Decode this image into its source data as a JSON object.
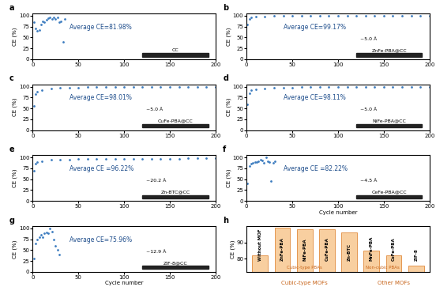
{
  "chart_data": [
    {
      "type": "scatter",
      "title": "a",
      "x_label": "",
      "y_label": "CE (%)",
      "annotations": [
        "Average CE=81.98%",
        "CC"
      ],
      "x": [
        1,
        3,
        5,
        7,
        9,
        11,
        13,
        15,
        17,
        19,
        21,
        23,
        25,
        27,
        29,
        31,
        33,
        35
      ],
      "values": [
        85,
        70,
        65,
        68,
        80,
        88,
        85,
        90,
        95,
        97,
        93,
        96,
        92,
        97,
        85,
        88,
        40,
        92
      ],
      "color": "#3b7bbf",
      "marker": "o",
      "xlim": [
        0,
        200
      ],
      "xticks": [
        0,
        50,
        100,
        150,
        200
      ],
      "ylim": [
        0,
        105
      ],
      "yticks": [
        0,
        25,
        50,
        75,
        100
      ]
    },
    {
      "type": "scatter",
      "title": "b",
      "x_label": "",
      "y_label": "CE (%)",
      "annotations": [
        "Average CE=99.17%",
        "ZnFe-PBA@CC",
        "~5.0 Å"
      ],
      "x": [
        1,
        3,
        5,
        10,
        20,
        30,
        40,
        50,
        60,
        70,
        80,
        90,
        100,
        110,
        120,
        130,
        140,
        150,
        160,
        170,
        180,
        190,
        200
      ],
      "values": [
        80,
        93,
        96,
        97.5,
        98.5,
        99,
        99,
        99.2,
        99.3,
        99.3,
        99.4,
        99.4,
        99.5,
        99.5,
        99.4,
        99.5,
        99.5,
        99.6,
        99.5,
        99.6,
        99.6,
        99.5,
        99.6
      ],
      "color": "#3b7bbf",
      "marker": "o",
      "xlim": [
        0,
        200
      ],
      "xticks": [
        0,
        50,
        100,
        150,
        200
      ],
      "ylim": [
        0,
        105
      ],
      "yticks": [
        0,
        25,
        50,
        75,
        100
      ]
    },
    {
      "type": "scatter",
      "title": "c",
      "x_label": "",
      "y_label": "CE (%)",
      "annotations": [
        "Average CE=98.01%",
        "CuFe-PBA@CC",
        "~5.0 Å"
      ],
      "x": [
        1,
        3,
        5,
        10,
        20,
        30,
        40,
        50,
        60,
        70,
        80,
        90,
        100,
        110,
        120,
        130,
        140,
        150,
        160,
        170,
        180,
        190,
        200
      ],
      "values": [
        55,
        82,
        88,
        92,
        95,
        96.5,
        97.5,
        98,
        98.3,
        98.5,
        98.7,
        98.8,
        98.9,
        99,
        99,
        99.1,
        99.1,
        99.2,
        99.2,
        99.2,
        99.3,
        99.3,
        99.3
      ],
      "color": "#3b7bbf",
      "marker": "o",
      "xlim": [
        0,
        200
      ],
      "xticks": [
        0,
        50,
        100,
        150,
        200
      ],
      "ylim": [
        0,
        105
      ],
      "yticks": [
        0,
        25,
        50,
        75,
        100
      ]
    },
    {
      "type": "scatter",
      "title": "d",
      "x_label": "",
      "y_label": "CE (%)",
      "annotations": [
        "Average CE=98.11%",
        "NiFe-PBA@CC",
        "~5.0 Å"
      ],
      "x": [
        1,
        3,
        5,
        10,
        20,
        30,
        40,
        50,
        60,
        70,
        80,
        90,
        100,
        110,
        120,
        130,
        140,
        150,
        160,
        170,
        180,
        190,
        200
      ],
      "values": [
        60,
        85,
        91,
        94,
        96,
        97,
        97.5,
        98,
        98.3,
        98.5,
        98.6,
        98.7,
        98.8,
        98.9,
        98.9,
        99,
        99,
        99.1,
        99.1,
        99.1,
        99.2,
        99.2,
        99.2
      ],
      "color": "#3b7bbf",
      "marker": "o",
      "xlim": [
        0,
        200
      ],
      "xticks": [
        0,
        50,
        100,
        150,
        200
      ],
      "ylim": [
        0,
        105
      ],
      "yticks": [
        0,
        25,
        50,
        75,
        100
      ]
    },
    {
      "type": "scatter",
      "title": "e",
      "x_label": "",
      "y_label": "CE (%)",
      "annotations": [
        "Average CE =96.22%",
        "Zn-BTC@CC",
        "~20.2 Å"
      ],
      "x": [
        1,
        3,
        5,
        10,
        20,
        30,
        40,
        50,
        60,
        70,
        80,
        90,
        100,
        110,
        120,
        130,
        140,
        150,
        160,
        170,
        180,
        190,
        200
      ],
      "values": [
        70,
        86,
        90,
        92,
        94,
        95,
        95.5,
        96,
        96.3,
        96.5,
        96.7,
        96.8,
        97,
        97,
        97.2,
        97.3,
        97.4,
        97.5,
        97.5,
        97.6,
        97.7,
        97.7,
        97.8
      ],
      "color": "#3b7bbf",
      "marker": "o",
      "xlim": [
        0,
        200
      ],
      "xticks": [
        0,
        50,
        100,
        150,
        200
      ],
      "ylim": [
        0,
        105
      ],
      "yticks": [
        0,
        25,
        50,
        75,
        100
      ]
    },
    {
      "type": "scatter",
      "title": "f",
      "x_label": "Cycle number",
      "y_label": "CE (%)",
      "annotations": [
        "Average CE =82.22%",
        "CeFe-PBA@CC",
        "~4.5 Å"
      ],
      "x": [
        1,
        3,
        5,
        7,
        9,
        11,
        13,
        15,
        17,
        19,
        21,
        23,
        25,
        27,
        29,
        31
      ],
      "values": [
        40,
        80,
        85,
        88,
        90,
        89,
        92,
        95,
        93,
        88,
        100,
        92,
        90,
        45,
        88,
        92
      ],
      "color": "#3b7bbf",
      "marker": "o",
      "xlim": [
        0,
        200
      ],
      "xticks": [
        0,
        50,
        100,
        150,
        200
      ],
      "ylim": [
        0,
        105
      ],
      "yticks": [
        0,
        25,
        50,
        75,
        100
      ]
    },
    {
      "type": "scatter",
      "title": "g",
      "x_label": "Cycle number",
      "y_label": "CE (%)",
      "annotations": [
        "Average CE=75.96%",
        "ZIF-8@CC",
        "~12.9 Å"
      ],
      "x": [
        1,
        3,
        5,
        7,
        9,
        11,
        13,
        15,
        17,
        19,
        21,
        23,
        25,
        27,
        29
      ],
      "values": [
        30,
        65,
        75,
        80,
        85,
        80,
        88,
        90,
        88,
        100,
        92,
        75,
        60,
        50,
        40
      ],
      "color": "#3b7bbf",
      "marker": "o",
      "xlim": [
        0,
        200
      ],
      "xticks": [
        0,
        50,
        100,
        150,
        200
      ],
      "ylim": [
        0,
        105
      ],
      "yticks": [
        0,
        25,
        50,
        75,
        100
      ]
    },
    {
      "type": "bar",
      "title": "h",
      "y_label": "CE (%)",
      "annotations": [
        "Cubic-type PBAs",
        "Non-cubic PBAs",
        "Cubic-type MOFs",
        "Other MOFs"
      ],
      "categories": [
        "Without MOF",
        "ZnFe-PBA",
        "NiFe-PBA",
        "CuFe-PBA",
        "Zn-BTC",
        "MnFe-PBA",
        "CoFe-PBA",
        "ZIF-8"
      ],
      "values": [
        81.98,
        99.17,
        98.11,
        98.01,
        96.22,
        85,
        82.22,
        75.96
      ],
      "color": "#f8cfa0",
      "tick_labels": "y",
      "ylim": [
        72,
        100
      ],
      "yticks": [
        80,
        90
      ]
    }
  ]
}
